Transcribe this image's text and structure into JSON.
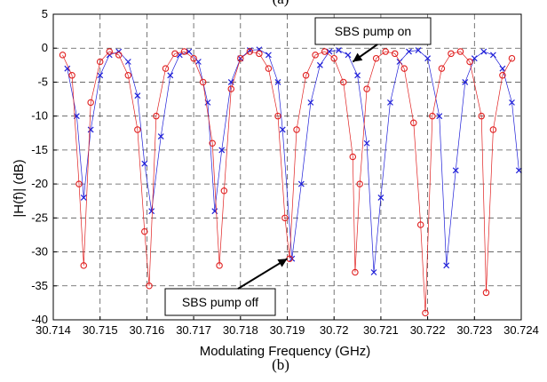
{
  "panel_top_label": "(a)",
  "panel_bottom_label": "(b)",
  "colors": {
    "pump_on": "#1f1fd8",
    "pump_off": "#e02020",
    "grid": "#555555",
    "axis": "#000000"
  },
  "chart_data": {
    "type": "scatter",
    "title": "",
    "xlabel": "Modulating Frequency (GHz)",
    "ylabel": "|H(f)| (dB)",
    "xlim": [
      30.714,
      30.724
    ],
    "ylim": [
      -40,
      5
    ],
    "x_ticks": [
      30.714,
      30.715,
      30.716,
      30.717,
      30.718,
      30.719,
      30.72,
      30.721,
      30.722,
      30.723,
      30.724
    ],
    "x_tick_labels": [
      "30.714",
      "30.715",
      "30.716",
      "30.717",
      "30.718",
      "30.719",
      "30.72",
      "30.721",
      "30.722",
      "30.723",
      "30.724"
    ],
    "y_ticks": [
      5,
      0,
      -5,
      -10,
      -15,
      -20,
      -25,
      -30,
      -35,
      -40
    ],
    "y_tick_labels": [
      "5",
      "0",
      "-5",
      "-10",
      "-15",
      "-20",
      "-25",
      "-30",
      "-35",
      "-40"
    ],
    "grid": "dashed",
    "series": [
      {
        "label": "SBS pump on",
        "marker": "x",
        "color": "#1f1fd8",
        "x": [
          30.7143,
          30.7145,
          30.71465,
          30.7148,
          30.715,
          30.7152,
          30.7154,
          30.7156,
          30.7158,
          30.71595,
          30.7161,
          30.7163,
          30.7165,
          30.7167,
          30.7169,
          30.7171,
          30.7173,
          30.71745,
          30.7176,
          30.7178,
          30.718,
          30.7182,
          30.7184,
          30.7186,
          30.7188,
          30.7189,
          30.7191,
          30.7193,
          30.7195,
          30.7197,
          30.7199,
          30.7201,
          30.7203,
          30.7205,
          30.7207,
          30.72085,
          30.721,
          30.7212,
          30.7214,
          30.7216,
          30.7218,
          30.722,
          30.72225,
          30.7224,
          30.7226,
          30.7228,
          30.723,
          30.7232,
          30.7234,
          30.7236,
          30.7238,
          30.72395
        ],
        "y": [
          -3,
          -10,
          -22,
          -12,
          -4,
          -1,
          -0.5,
          -2,
          -7,
          -17,
          -24,
          -13,
          -4,
          -1,
          -0.5,
          -2,
          -8,
          -24,
          -15,
          -5,
          -1.5,
          -0.3,
          -0.2,
          -1,
          -5,
          -12,
          -31,
          -20,
          -8,
          -2.5,
          -0.5,
          -0.3,
          -1,
          -4,
          -14,
          -33,
          -22,
          -8,
          -2,
          -0.5,
          -0.3,
          -1.5,
          -10,
          -32,
          -18,
          -5,
          -1.5,
          -0.5,
          -1,
          -3,
          -8,
          -18
        ]
      },
      {
        "label": "SBS pump off",
        "marker": "o",
        "color": "#e02020",
        "x": [
          30.7142,
          30.7144,
          30.71455,
          30.71465,
          30.7148,
          30.715,
          30.7152,
          30.7154,
          30.7156,
          30.7158,
          30.71595,
          30.71605,
          30.7162,
          30.7164,
          30.7166,
          30.7168,
          30.717,
          30.7172,
          30.7174,
          30.71755,
          30.71765,
          30.7178,
          30.718,
          30.7182,
          30.7184,
          30.7186,
          30.7188,
          30.71895,
          30.71905,
          30.7192,
          30.7194,
          30.7196,
          30.7198,
          30.72,
          30.7202,
          30.7204,
          30.72045,
          30.72055,
          30.7207,
          30.7209,
          30.7211,
          30.7213,
          30.7215,
          30.7217,
          30.72185,
          30.72195,
          30.7221,
          30.7223,
          30.7225,
          30.7227,
          30.7229,
          30.72315,
          30.72325,
          30.7234,
          30.7236,
          30.7238
        ],
        "y": [
          -1,
          -4,
          -20,
          -32,
          -8,
          -2,
          -0.5,
          -1,
          -4,
          -12,
          -27,
          -35,
          -10,
          -3,
          -0.8,
          -0.5,
          -1.5,
          -5,
          -14,
          -32,
          -21,
          -6,
          -1.5,
          -0.5,
          -0.8,
          -3,
          -10,
          -25,
          -31,
          -12,
          -4,
          -1,
          -0.5,
          -1.5,
          -5,
          -16,
          -33,
          -20,
          -6,
          -1.5,
          -0.5,
          -0.8,
          -3,
          -11,
          -26,
          -39,
          -10,
          -3,
          -0.8,
          -0.5,
          -2,
          -10,
          -36,
          -12,
          -4,
          -1.5
        ]
      }
    ],
    "annotations": [
      {
        "text": "SBS pump on",
        "x": 30.7204,
        "y": -2
      },
      {
        "text": "SBS pump off",
        "x": 30.719,
        "y": -31
      }
    ]
  }
}
